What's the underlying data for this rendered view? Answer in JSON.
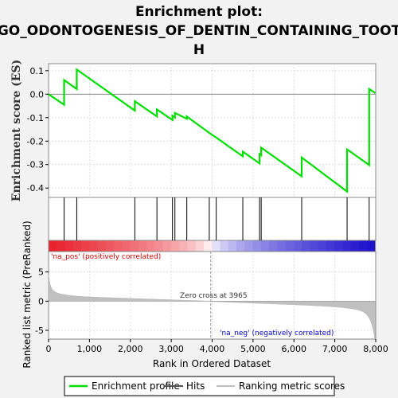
{
  "chart_data": {
    "type": "line",
    "title": [
      "Enrichment plot:",
      "GO_ODONTOGENESIS_OF_DENTIN_CONTAINING_TOOT",
      "H"
    ],
    "ylabel_top": "Enrichment score (ES)",
    "ylabel_bottom": "Ranked list metric (PreRanked)",
    "xlabel": "Rank in Ordered Dataset",
    "xlim": [
      0,
      8000
    ],
    "xticks": [
      0,
      1000,
      2000,
      3000,
      4000,
      5000,
      6000,
      7000,
      8000
    ],
    "es_ylim": [
      -0.44,
      0.13
    ],
    "es_yticks": [
      0.1,
      0.0,
      -0.1,
      -0.2,
      -0.3,
      -0.4
    ],
    "metric_ylim": [
      -6.5,
      8.5
    ],
    "metric_yticks": [
      5,
      0,
      -5
    ],
    "hits": [
      380,
      690,
      2110,
      2650,
      3030,
      3090,
      3380,
      3930,
      4100,
      4750,
      5160,
      5200,
      6190,
      7300,
      7840
    ],
    "enrichment_profile": {
      "name": "Enrichment profile",
      "points": [
        [
          0,
          0.0
        ],
        [
          380,
          -0.045
        ],
        [
          380,
          0.06
        ],
        [
          690,
          0.022
        ],
        [
          690,
          0.105
        ],
        [
          2110,
          -0.07
        ],
        [
          2110,
          -0.03
        ],
        [
          2650,
          -0.095
        ],
        [
          2650,
          -0.065
        ],
        [
          3030,
          -0.11
        ],
        [
          3030,
          -0.092
        ],
        [
          3090,
          -0.1
        ],
        [
          3090,
          -0.08
        ],
        [
          3380,
          -0.105
        ],
        [
          3380,
          -0.095
        ],
        [
          3930,
          -0.165
        ],
        [
          4100,
          -0.185
        ],
        [
          4750,
          -0.265
        ],
        [
          4750,
          -0.245
        ],
        [
          5160,
          -0.295
        ],
        [
          5160,
          -0.255
        ],
        [
          5200,
          -0.26
        ],
        [
          5200,
          -0.228
        ],
        [
          6190,
          -0.35
        ],
        [
          6190,
          -0.27
        ],
        [
          7300,
          -0.415
        ],
        [
          7300,
          -0.235
        ],
        [
          7840,
          -0.302
        ],
        [
          7840,
          0.022
        ],
        [
          7990,
          0.005
        ]
      ]
    },
    "zero_cross": 3965,
    "annotations": {
      "pos": "'na_pos' (positively correlated)",
      "neg": "'na_neg' (negatively correlated)",
      "zero": "Zero cross at 3965"
    },
    "legend": [
      {
        "label": "Enrichment profile",
        "color": "#00dd00"
      },
      {
        "label": "Hits",
        "color": "#000000"
      },
      {
        "label": "Ranking metric scores",
        "color": "#c0c0c0"
      }
    ],
    "colors": {
      "profile": "#00dd00",
      "pos_text": "#dd0000",
      "neg_text": "#0000cc",
      "metric_fill": "#c0c0c0",
      "heat_red": "#e8202a",
      "heat_blue": "#1a0dcc"
    }
  }
}
